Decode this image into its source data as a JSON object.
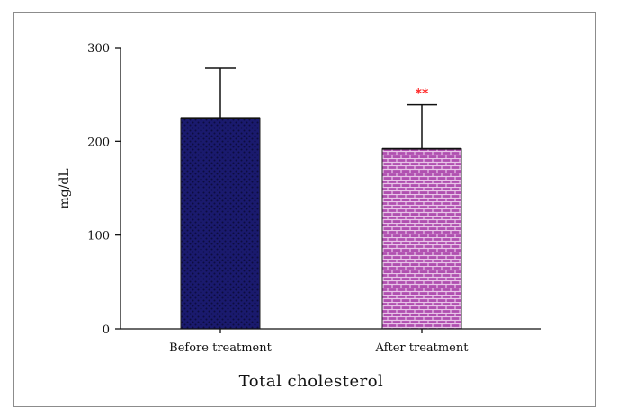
{
  "chart_data": {
    "type": "bar",
    "categories": [
      "Before treatment",
      "After treatment"
    ],
    "values": [
      225,
      192
    ],
    "errors": [
      53,
      47
    ],
    "annotations": [
      {
        "category": "After treatment",
        "text": "**"
      }
    ],
    "title": "",
    "xlabel": "Total cholesterol",
    "ylabel": "mg/dL",
    "ylim": [
      0,
      300
    ],
    "yticks": [
      0,
      100,
      200,
      300
    ],
    "grid": false,
    "legend": "none",
    "colors": {
      "before_fill": "#1a1a6e",
      "before_pattern": "#0d0d3f",
      "after_fill": "#b050b0",
      "after_pattern": "#e8c6e8",
      "annotation": "#ff2a2a",
      "axis": "#111111"
    }
  }
}
